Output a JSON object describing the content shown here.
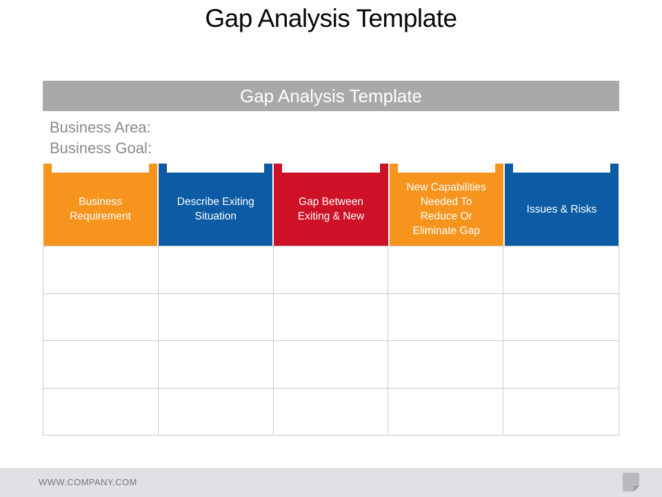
{
  "page": {
    "title": "Gap Analysis Template"
  },
  "table": {
    "header": "Gap Analysis Template",
    "header_bg": "#A9A9A9",
    "info_lines": [
      "Business Area:",
      "Business Goal:"
    ],
    "columns": [
      {
        "label": "Business\nRequirement",
        "color": "#F7941E"
      },
      {
        "label": "Describe Exiting\nSituation",
        "color": "#0B5CA5"
      },
      {
        "label": "Gap Between\nExiting & New",
        "color": "#CE1126"
      },
      {
        "label": "New Capabilities\nNeeded To\nReduce Or\nEliminate Gap",
        "color": "#F7941E"
      },
      {
        "label": "Issues & Risks",
        "color": "#0B5CA5"
      }
    ],
    "empty_row_count": 4,
    "gridline_color": "#C9C9C9"
  },
  "footer": {
    "url": "WWW.COMPANY.COM",
    "bar_color": "#E0E1E5",
    "icon": "page-curl-icon",
    "icon_color": "#B9BABE",
    "icon_fold_color": "#9A9B9F"
  }
}
